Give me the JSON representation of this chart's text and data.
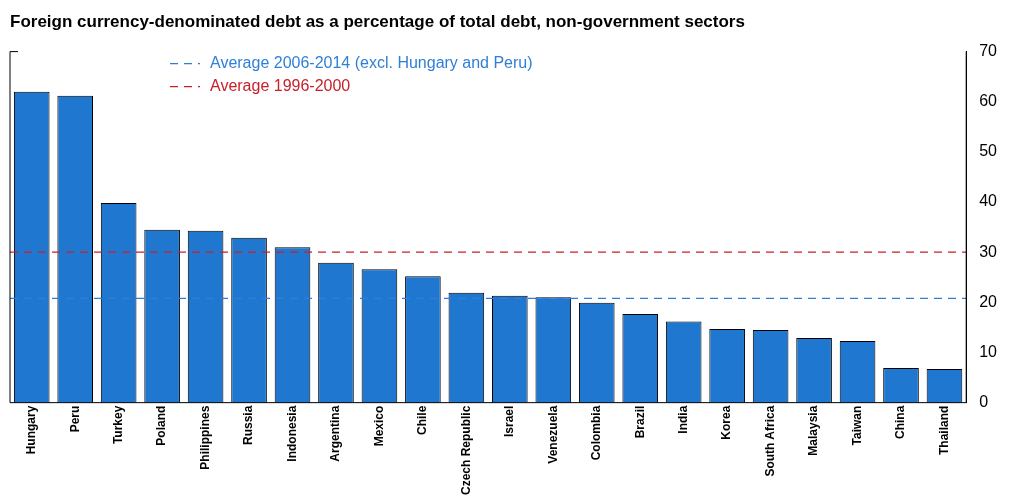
{
  "chart_data": {
    "type": "bar",
    "title": "Foreign currency-denominated debt as a percentage of total debt, non-government sectors",
    "categories": [
      "Hungary",
      "Peru",
      "Turkey",
      "Poland",
      "Philippines",
      "Russia",
      "Indonesia",
      "Argentina",
      "Mexico",
      "Chile",
      "Czech Republic",
      "Israel",
      "Venezuela",
      "Colombia",
      "Brazil",
      "India",
      "Korea",
      "South Africa",
      "Malaysia",
      "Taiwan",
      "China",
      "Thailand"
    ],
    "values": [
      62,
      61.2,
      39.8,
      34.5,
      34.3,
      32.9,
      31,
      27.9,
      26.6,
      25.2,
      21.9,
      21.3,
      21,
      19.9,
      17.7,
      16.2,
      14.7,
      14.5,
      12.9,
      12.3,
      6.9,
      6.7
    ],
    "color": "#1f77d0",
    "ylim": [
      0,
      70
    ],
    "yticks": [
      0,
      10,
      20,
      30,
      40,
      50,
      60,
      70
    ],
    "grid": false,
    "legend": "top left",
    "ref_lines": [
      {
        "axis": "y",
        "value": 20.8,
        "label": "Average 2006-2014 (excl. Hungary and Peru)",
        "color": "#2f7fd8",
        "line_style": "dashed"
      },
      {
        "axis": "y",
        "value": 30,
        "label": "Average 1996-2000",
        "color": "#c8202a",
        "line_style": "dashed"
      }
    ]
  }
}
